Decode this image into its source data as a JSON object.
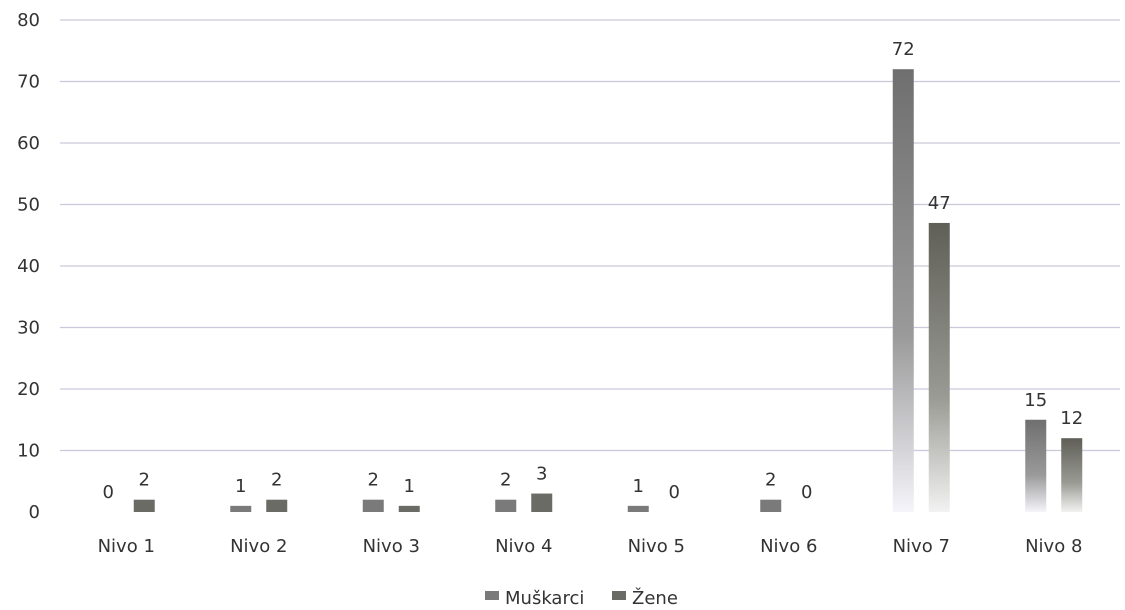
{
  "chart_data": {
    "type": "bar",
    "categories": [
      "Nivo 1",
      "Nivo 2",
      "Nivo 3",
      "Nivo 4",
      "Nivo 5",
      "Nivo 6",
      "Nivo 7",
      "Nivo 8"
    ],
    "series": [
      {
        "name": "Muškarci",
        "values": [
          0,
          1,
          2,
          2,
          1,
          2,
          72,
          15
        ],
        "color": "#7a7a7a"
      },
      {
        "name": "Žene",
        "values": [
          2,
          2,
          1,
          3,
          0,
          0,
          47,
          12
        ],
        "color": "#6b6b66"
      }
    ],
    "title": "",
    "xlabel": "",
    "ylabel": "",
    "ylim": [
      0,
      80
    ],
    "yticks": [
      0,
      10,
      20,
      30,
      40,
      50,
      60,
      70,
      80
    ],
    "grid": true,
    "legend_position": "bottom"
  }
}
